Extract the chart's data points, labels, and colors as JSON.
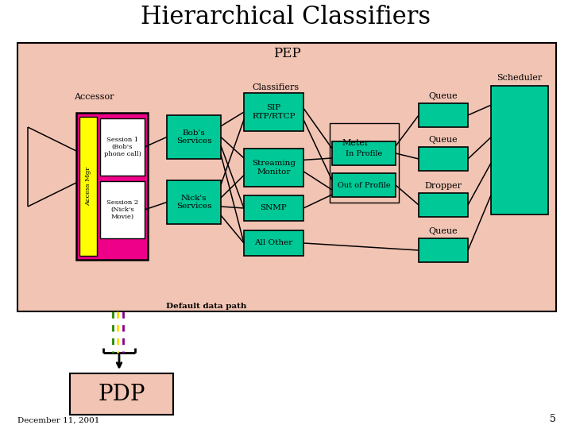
{
  "title": "Hierarchical Classifiers",
  "bg_color": "#ffffff",
  "pep_box_color": "#f2c4b4",
  "teal_color": "#00c896",
  "pink_box_color": "#ee0088",
  "yellow_box_color": "#ffff00",
  "pdp_box_color": "#f2c4b4",
  "pep_label": "PEP",
  "accessor_label": "Accessor",
  "session1_label": "Session 1\n(Bob's\nphone call)",
  "session2_label": "Session 2\n(Nick's\nMovie)",
  "bobs_services_label": "Bob's\nServices",
  "nicks_services_label": "Nick's\nServices",
  "classifiers_label": "Classifiers",
  "sip_label": "SIP\nRTP/RTCP",
  "streaming_label": "Streaming\nMonitor",
  "snmp_label": "SNMP",
  "allother_label": "All Other",
  "meter_label": "Meter",
  "inprofile_label": "In Profile",
  "outprofile_label": "Out of Profile",
  "queue_label_top": "Queue",
  "queue_label_mid": "Queue",
  "dropper_label": "Dropper",
  "queue_label_bot": "Queue",
  "scheduler_label": "Scheduler",
  "default_path_label": "Default data path",
  "pdp_label": "PDP",
  "date_label": "December 11, 2001",
  "page_num": "5",
  "access_mgr_label": "Access Mgr"
}
